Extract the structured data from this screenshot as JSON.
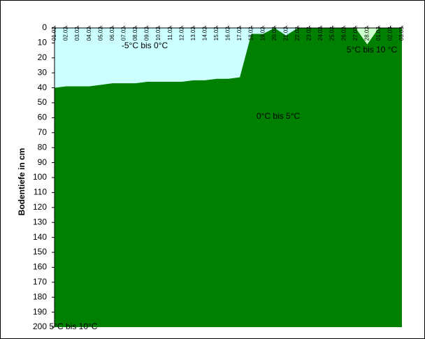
{
  "chart_data": {
    "type": "stacked-area",
    "y_label": "Bodentiefe in cm",
    "categories": [
      "01.02.",
      "02.02.",
      "03.02.",
      "04.02.",
      "05.02.",
      "06.02.",
      "07.02.",
      "08.02.",
      "09.02.",
      "10.02.",
      "11.02.",
      "12.02.",
      "13.02.",
      "14.02.",
      "15.02.",
      "16.02.",
      "17.02.",
      "18.02.",
      "19.02.",
      "20.02.",
      "21.02.",
      "22.02.",
      "23.02.",
      "24.02.",
      "25.02.",
      "26.02.",
      "27.02.",
      "28.02.",
      "01.03.",
      "02.03.",
      "03.03."
    ],
    "series": [
      {
        "name": "5°C bis 10 °C",
        "color": "#ccffcc",
        "values": [
          0,
          0,
          0,
          0,
          0,
          0,
          0,
          0,
          0,
          0,
          0,
          0,
          0,
          0,
          0,
          0,
          0,
          0,
          0,
          0,
          0,
          0,
          0,
          0,
          0,
          0,
          0,
          11,
          0,
          0,
          0
        ]
      },
      {
        "name": "-5°C bis 0°C",
        "color": "#ccffff",
        "values": [
          40,
          39,
          39,
          39,
          38,
          37,
          37,
          37,
          36,
          36,
          36,
          36,
          35,
          35,
          34,
          34,
          33,
          4,
          4,
          0,
          5,
          0,
          0,
          0,
          0,
          0,
          0,
          0,
          0,
          0,
          0
        ]
      },
      {
        "name": "0°C bis 5°C",
        "color": "#008000",
        "values": [
          160,
          161,
          161,
          161,
          162,
          163,
          163,
          163,
          164,
          164,
          164,
          164,
          165,
          165,
          166,
          166,
          167,
          196,
          196,
          200,
          195,
          200,
          200,
          200,
          200,
          200,
          200,
          189,
          200,
          200,
          200
        ]
      }
    ],
    "annotations": [
      "5°C bis 10°C"
    ],
    "ylim": [
      200,
      0
    ],
    "yticks": [
      0,
      10,
      20,
      30,
      40,
      50,
      60,
      70,
      80,
      90,
      100,
      110,
      120,
      130,
      140,
      150,
      160,
      170,
      180,
      190,
      200
    ]
  }
}
